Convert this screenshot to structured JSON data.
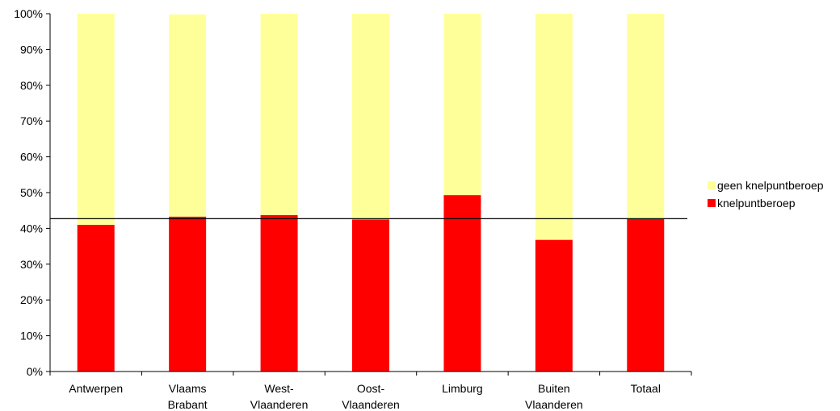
{
  "chart_data": {
    "type": "bar",
    "stacked": true,
    "percent": true,
    "categories": [
      [
        "Antwerpen"
      ],
      [
        "Vlaams",
        "Brabant"
      ],
      [
        "West-",
        "Vlaanderen"
      ],
      [
        "Oost-",
        "Vlaanderen"
      ],
      [
        "Limburg"
      ],
      [
        "Buiten",
        "Vlaanderen"
      ],
      [
        "Totaal"
      ]
    ],
    "series": [
      {
        "name": "knelpuntberoep",
        "color": "#ff0000",
        "values": [
          41,
          43.3,
          43.7,
          42.5,
          49.3,
          36.8,
          42.7
        ]
      },
      {
        "name": "geen knelpuntberoep",
        "color": "#ffff99",
        "values": [
          59,
          56.5,
          56.3,
          57.5,
          50.7,
          63.2,
          57.3
        ]
      }
    ],
    "ylim": [
      0,
      100
    ],
    "yticks": [
      "0%",
      "10%",
      "20%",
      "30%",
      "40%",
      "50%",
      "60%",
      "70%",
      "80%",
      "90%",
      "100%"
    ],
    "reference_line": 42.7,
    "grid": false,
    "legend_position": "right",
    "legend_order": [
      "geen knelpuntberoep",
      "knelpuntberoep"
    ],
    "title": "",
    "xlabel": "",
    "ylabel": ""
  }
}
